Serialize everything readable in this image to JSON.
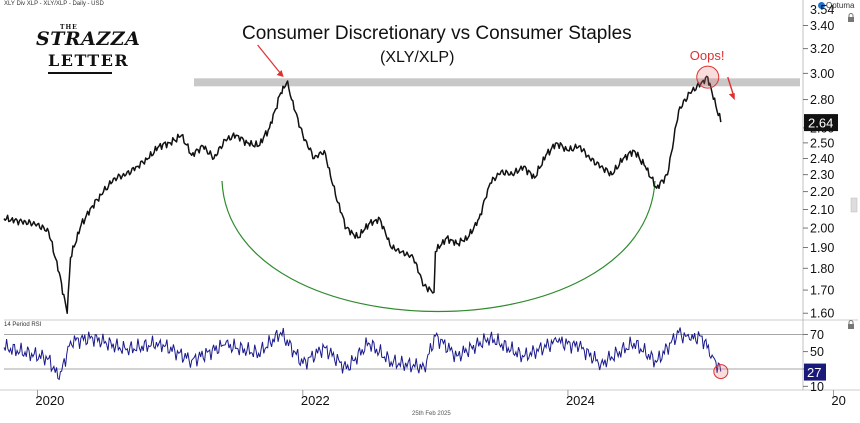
{
  "header": {
    "chart_info": "XLY Div XLP - XLY/XLP - Daily - USD",
    "brand_the": "THE",
    "brand_line1": "STRAZZA",
    "brand_line2": "LETTER",
    "vendor": "Optuma",
    "date_label": "25th Feb 2025"
  },
  "colors": {
    "price_line": "#111111",
    "rsi_line": "#1a1a8c",
    "resistance_band": "#c8c8c8",
    "arc": "#2e8b2e",
    "annotation": "#e03030",
    "last_price_bg": "#111111",
    "rsi_badge_bg": "#1a1a7a"
  },
  "chart_data": [
    {
      "type": "line",
      "title": "Consumer Discretionary vs Consumer Staples",
      "subtitle": "(XLY/XLP)",
      "xlabel": "",
      "ylabel": "",
      "x_ticks": [
        "2020",
        "2022",
        "2024",
        "20"
      ],
      "y_ticks": [
        3.4,
        3.2,
        3.0,
        2.8,
        2.6,
        2.5,
        2.4,
        2.3,
        2.2,
        2.1,
        2.0,
        1.9,
        1.8,
        1.7,
        1.6
      ],
      "top_partial_tick": "3.54",
      "ylim": [
        1.58,
        3.56
      ],
      "log_scale": true,
      "grid": false,
      "last_value_label": "2.64",
      "resistance_level": 2.93,
      "annotation": "Oops!",
      "series": [
        {
          "x": [
            "2019-10",
            "2020-01",
            "2020-02",
            "2020-03",
            "2020-03-23",
            "2020-04",
            "2020-05",
            "2020-06",
            "2020-07",
            "2020-08",
            "2020-09",
            "2020-10",
            "2020-11",
            "2020-12",
            "2021-01",
            "2021-02",
            "2021-03",
            "2021-04",
            "2021-05",
            "2021-06",
            "2021-07",
            "2021-08",
            "2021-09",
            "2021-10",
            "2021-11",
            "2021-11-20",
            "2021-12",
            "2022-01",
            "2022-02",
            "2022-03",
            "2022-04",
            "2022-05",
            "2022-06",
            "2022-07",
            "2022-08",
            "2022-09",
            "2022-10",
            "2022-11",
            "2022-12",
            "2022-12-28",
            "2023-01",
            "2023-02",
            "2023-03",
            "2023-04",
            "2023-05",
            "2023-06",
            "2023-07",
            "2023-08",
            "2023-09",
            "2023-10",
            "2023-11",
            "2023-12",
            "2024-01",
            "2024-02",
            "2024-03",
            "2024-04",
            "2024-05",
            "2024-06",
            "2024-07",
            "2024-08",
            "2024-09",
            "2024-10",
            "2024-11",
            "2024-12",
            "2025-01",
            "2025-01-20",
            "2025-02",
            "2025-02-25"
          ],
          "values": [
            2.05,
            2.02,
            1.98,
            1.78,
            1.6,
            1.85,
            2.02,
            2.12,
            2.2,
            2.28,
            2.3,
            2.35,
            2.4,
            2.48,
            2.5,
            2.55,
            2.42,
            2.48,
            2.4,
            2.52,
            2.55,
            2.5,
            2.48,
            2.6,
            2.85,
            2.94,
            2.8,
            2.55,
            2.4,
            2.45,
            2.18,
            2.0,
            1.95,
            2.02,
            2.05,
            1.9,
            1.88,
            1.85,
            1.72,
            1.69,
            1.88,
            1.95,
            1.92,
            1.95,
            2.05,
            2.25,
            2.32,
            2.3,
            2.35,
            2.28,
            2.42,
            2.5,
            2.45,
            2.48,
            2.4,
            2.35,
            2.3,
            2.4,
            2.45,
            2.35,
            2.22,
            2.3,
            2.72,
            2.85,
            2.92,
            2.97,
            2.85,
            2.64
          ]
        }
      ]
    },
    {
      "type": "line",
      "title": "14 Period RSI",
      "xlabel": "",
      "ylabel": "",
      "y_ticks": [
        70,
        50,
        30,
        10
      ],
      "ylim": [
        8,
        82
      ],
      "last_value_label": "27",
      "series": [
        {
          "x": [
            "2019-10",
            "2020-02",
            "2020-03",
            "2020-04",
            "2020-06",
            "2020-09",
            "2020-12",
            "2021-03",
            "2021-06",
            "2021-09",
            "2021-11",
            "2022-01",
            "2022-03",
            "2022-05",
            "2022-07",
            "2022-09",
            "2022-12",
            "2023-01",
            "2023-03",
            "2023-06",
            "2023-09",
            "2023-12",
            "2024-02",
            "2024-04",
            "2024-07",
            "2024-09",
            "2024-11",
            "2024-12",
            "2025-01",
            "2025-02",
            "2025-02-25"
          ],
          "values": [
            55,
            42,
            18,
            62,
            66,
            52,
            60,
            40,
            58,
            48,
            72,
            36,
            55,
            30,
            60,
            38,
            32,
            68,
            45,
            66,
            44,
            62,
            56,
            36,
            60,
            38,
            72,
            64,
            68,
            46,
            27
          ]
        }
      ]
    }
  ]
}
